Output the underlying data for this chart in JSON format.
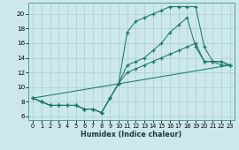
{
  "bg_color": "#cce8ec",
  "grid_color": "#aacccc",
  "line_color": "#1a7a6a",
  "xlabel": "Humidex (Indice chaleur)",
  "xlim": [
    -0.5,
    23.5
  ],
  "ylim": [
    5.5,
    21.5
  ],
  "xticks": [
    0,
    1,
    2,
    3,
    4,
    5,
    6,
    7,
    8,
    9,
    10,
    11,
    12,
    13,
    14,
    15,
    16,
    17,
    18,
    19,
    20,
    21,
    22,
    23
  ],
  "yticks": [
    6,
    8,
    10,
    12,
    14,
    16,
    18,
    20
  ],
  "line1_x": [
    0,
    1,
    2,
    3,
    4,
    5,
    6,
    7,
    8,
    9,
    10,
    11,
    12,
    13,
    14,
    15,
    16,
    17,
    18,
    19,
    20,
    21,
    22,
    23
  ],
  "line1_y": [
    8.5,
    8.0,
    7.5,
    7.5,
    7.5,
    7.5,
    7.0,
    7.0,
    6.5,
    8.5,
    10.5,
    17.5,
    19.0,
    19.5,
    20.0,
    20.5,
    21.0,
    21.0,
    21.0,
    21.0,
    15.5,
    13.5,
    13.5,
    13.0
  ],
  "line2_x": [
    0,
    1,
    2,
    3,
    4,
    5,
    6,
    7,
    8,
    9,
    10,
    11,
    12,
    13,
    14,
    15,
    16,
    17,
    18,
    19,
    20,
    21,
    22,
    23
  ],
  "line2_y": [
    8.5,
    8.0,
    7.5,
    7.5,
    7.5,
    7.5,
    7.0,
    7.0,
    6.5,
    8.5,
    10.5,
    13.0,
    13.5,
    14.0,
    15.0,
    16.0,
    17.5,
    18.5,
    19.5,
    15.5,
    13.5,
    13.5,
    13.5,
    13.0
  ],
  "line3_x": [
    0,
    1,
    2,
    3,
    4,
    5,
    6,
    7,
    8,
    9,
    10,
    11,
    12,
    13,
    14,
    15,
    16,
    17,
    18,
    19,
    20,
    21,
    22,
    23
  ],
  "line3_y": [
    8.5,
    8.0,
    7.5,
    7.5,
    7.5,
    7.5,
    7.0,
    7.0,
    6.5,
    8.5,
    10.5,
    12.0,
    12.5,
    13.0,
    13.5,
    14.0,
    14.5,
    15.0,
    15.5,
    16.0,
    13.5,
    13.5,
    13.0,
    13.0
  ],
  "line4_x": [
    0,
    23
  ],
  "line4_y": [
    8.5,
    13.0
  ]
}
